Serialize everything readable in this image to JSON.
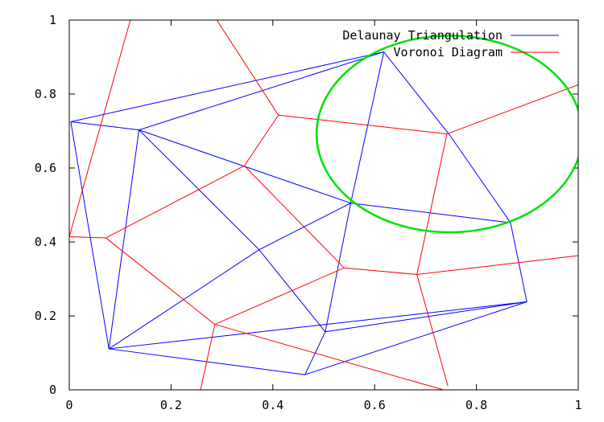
{
  "chart_data": {
    "type": "line",
    "title": "",
    "xlabel": "",
    "ylabel": "",
    "xlim": [
      0,
      1
    ],
    "ylim": [
      0,
      1
    ],
    "grid": false,
    "legend_position": "top-right",
    "xticks": [
      "0",
      "0.2",
      "0.4",
      "0.6",
      "0.8",
      "1"
    ],
    "xtick_values": [
      0,
      0.2,
      0.4,
      0.6,
      0.8,
      1
    ],
    "yticks": [
      "0",
      "0.2",
      "0.4",
      "0.6",
      "0.8",
      "1"
    ],
    "ytick_values": [
      0,
      0.2,
      0.4,
      0.6,
      0.8,
      1
    ],
    "series": [
      {
        "name": "Delaunay Triangulation",
        "color": "#0000ff",
        "segments": [
          [
            [
              0.003,
              0.725
            ],
            [
              0.618,
              0.914
            ]
          ],
          [
            [
              0.003,
              0.725
            ],
            [
              0.137,
              0.703
            ]
          ],
          [
            [
              0.003,
              0.725
            ],
            [
              0.078,
              0.111
            ]
          ],
          [
            [
              0.137,
              0.703
            ],
            [
              0.618,
              0.914
            ]
          ],
          [
            [
              0.137,
              0.703
            ],
            [
              0.078,
              0.111
            ]
          ],
          [
            [
              0.137,
              0.703
            ],
            [
              0.373,
              0.379
            ]
          ],
          [
            [
              0.137,
              0.703
            ],
            [
              0.553,
              0.505
            ]
          ],
          [
            [
              0.618,
              0.914
            ],
            [
              0.553,
              0.505
            ]
          ],
          [
            [
              0.618,
              0.914
            ],
            [
              0.748,
              0.688
            ]
          ],
          [
            [
              0.748,
              0.688
            ],
            [
              0.867,
              0.452
            ]
          ],
          [
            [
              0.553,
              0.505
            ],
            [
              0.867,
              0.452
            ]
          ],
          [
            [
              0.553,
              0.505
            ],
            [
              0.373,
              0.379
            ]
          ],
          [
            [
              0.553,
              0.505
            ],
            [
              0.503,
              0.157
            ]
          ],
          [
            [
              0.867,
              0.452
            ],
            [
              0.899,
              0.238
            ]
          ],
          [
            [
              0.899,
              0.238
            ],
            [
              0.503,
              0.157
            ]
          ],
          [
            [
              0.899,
              0.238
            ],
            [
              0.078,
              0.111
            ]
          ],
          [
            [
              0.899,
              0.238
            ],
            [
              0.463,
              0.041
            ]
          ],
          [
            [
              0.373,
              0.379
            ],
            [
              0.078,
              0.111
            ]
          ],
          [
            [
              0.373,
              0.379
            ],
            [
              0.503,
              0.157
            ]
          ],
          [
            [
              0.503,
              0.157
            ],
            [
              0.463,
              0.041
            ]
          ],
          [
            [
              0.078,
              0.111
            ],
            [
              0.463,
              0.041
            ]
          ]
        ]
      },
      {
        "name": "Voronoi Diagram",
        "color": "#ff0000",
        "segments": [
          [
            [
              0.12,
              1.0
            ],
            [
              0.0,
              0.414
            ]
          ],
          [
            [
              0.0,
              0.414
            ],
            [
              0.072,
              0.411
            ]
          ],
          [
            [
              0.072,
              0.411
            ],
            [
              0.344,
              0.606
            ]
          ],
          [
            [
              0.344,
              0.606
            ],
            [
              0.411,
              0.743
            ]
          ],
          [
            [
              0.411,
              0.743
            ],
            [
              0.29,
              1.0
            ]
          ],
          [
            [
              0.411,
              0.743
            ],
            [
              0.742,
              0.692
            ]
          ],
          [
            [
              0.742,
              0.692
            ],
            [
              1.0,
              0.825
            ]
          ],
          [
            [
              0.742,
              0.692
            ],
            [
              0.683,
              0.312
            ]
          ],
          [
            [
              0.344,
              0.606
            ],
            [
              0.54,
              0.33
            ]
          ],
          [
            [
              0.54,
              0.33
            ],
            [
              0.683,
              0.312
            ]
          ],
          [
            [
              0.683,
              0.312
            ],
            [
              1.0,
              0.363
            ]
          ],
          [
            [
              0.683,
              0.312
            ],
            [
              0.744,
              0.01
            ]
          ],
          [
            [
              0.54,
              0.33
            ],
            [
              0.286,
              0.177
            ]
          ],
          [
            [
              0.072,
              0.411
            ],
            [
              0.286,
              0.177
            ]
          ],
          [
            [
              0.286,
              0.177
            ],
            [
              0.735,
              0.0
            ]
          ],
          [
            [
              0.286,
              0.177
            ],
            [
              0.258,
              0.0
            ]
          ]
        ]
      }
    ],
    "annotations": [
      {
        "type": "ellipse",
        "color": "#00e000",
        "center": [
          0.747,
          0.692
        ],
        "radius_x": 0.261,
        "radius_y": 0.266
      }
    ]
  }
}
